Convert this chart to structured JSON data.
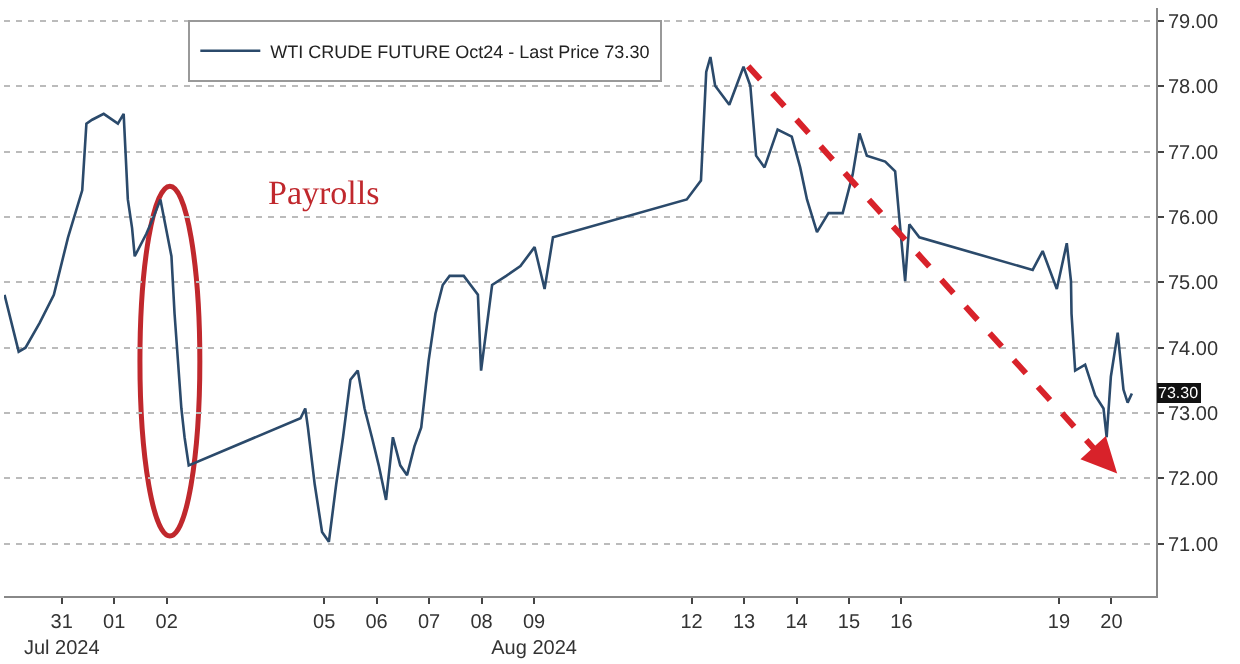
{
  "chart_data": {
    "type": "line",
    "legend": "top left",
    "grid": "y",
    "marker": "none",
    "line_style": "solid",
    "xlim": [
      "2024-07-30T09:36",
      "2024-08-21T08:24"
    ],
    "ylim": [
      70.2,
      79.2
    ],
    "yticks": [
      {
        "value": 71,
        "label": "71.00"
      },
      {
        "value": 72,
        "label": "72.00"
      },
      {
        "value": 73,
        "label": "73.00"
      },
      {
        "value": 74,
        "label": "74.00"
      },
      {
        "value": 75,
        "label": "75.00"
      },
      {
        "value": 76,
        "label": "76.00"
      },
      {
        "value": 77,
        "label": "77.00"
      },
      {
        "value": 78,
        "label": "78.00"
      },
      {
        "value": 79,
        "label": "79.00"
      }
    ],
    "xticks": [
      {
        "value": "2024-07-31T12:00",
        "label": "31\nJul 2024"
      },
      {
        "value": "2024-08-01T12:00",
        "label": "01"
      },
      {
        "value": "2024-08-02T12:00",
        "label": "02"
      },
      {
        "value": "2024-08-05T12:00",
        "label": "05"
      },
      {
        "value": "2024-08-06T12:00",
        "label": "06"
      },
      {
        "value": "2024-08-07T12:00",
        "label": "07"
      },
      {
        "value": "2024-08-08T12:00",
        "label": "08"
      },
      {
        "value": "2024-08-09T12:00",
        "label": "09\nAug 2024"
      },
      {
        "value": "2024-08-12T12:00",
        "label": "12"
      },
      {
        "value": "2024-08-13T12:00",
        "label": "13"
      },
      {
        "value": "2024-08-14T12:00",
        "label": "14"
      },
      {
        "value": "2024-08-15T12:00",
        "label": "15"
      },
      {
        "value": "2024-08-16T12:00",
        "label": "16"
      },
      {
        "value": "2024-08-19T12:00",
        "label": "19"
      },
      {
        "value": "2024-08-20T12:00",
        "label": "20"
      }
    ],
    "annotations": [
      "Payrolls",
      {
        "text": "73.30",
        "y": 73.3
      }
    ],
    "series": [
      {
        "name": "WTI CRUDE FUTURE Oct24 - Last Price 73.30",
        "color": "#2b4a6b",
        "x": [
          "2024-07-30T09:50",
          "2024-07-30T16:19",
          "2024-07-30T19:26",
          "2024-07-31T01:55",
          "2024-07-31T08:24",
          "2024-07-31T14:53",
          "2024-07-31T21:22",
          "2024-07-31T23:17",
          "2024-08-01T01:55",
          "2024-08-01T07:12",
          "2024-08-01T13:41",
          "2024-08-01T16:19",
          "2024-08-01T18:14",
          "2024-08-01T20:10",
          "2024-08-01T21:22",
          "2024-08-02T02:38",
          "2024-08-02T05:46",
          "2024-08-02T09:07",
          "2024-08-02T14:10",
          "2024-08-02T15:36",
          "2024-08-02T18:43",
          "2024-08-02T20:10",
          "2024-08-02T22:05",
          "2024-08-05T01:12",
          "2024-08-05T03:22",
          "2024-08-05T04:34",
          "2024-08-05T07:41",
          "2024-08-05T11:02",
          "2024-08-05T14:10",
          "2024-08-05T17:31",
          "2024-08-05T20:38",
          "2024-08-06T00:00",
          "2024-08-06T03:22",
          "2024-08-06T06:29",
          "2024-08-06T09:50",
          "2024-08-06T12:58",
          "2024-08-06T16:19",
          "2024-08-06T19:26",
          "2024-08-06T22:48",
          "2024-08-07T01:55",
          "2024-08-07T05:17",
          "2024-08-07T08:24",
          "2024-08-07T11:46",
          "2024-08-07T14:53",
          "2024-08-07T18:14",
          "2024-08-07T21:22",
          "2024-08-08T03:50",
          "2024-08-08T10:19",
          "2024-08-08T11:46",
          "2024-08-08T16:48",
          "2024-08-08T23:17",
          "2024-08-09T05:46",
          "2024-08-09T12:14",
          "2024-08-09T16:48",
          "2024-08-09T20:38",
          "2024-08-12T09:50",
          "2024-08-12T16:19",
          "2024-08-12T18:43",
          "2024-08-12T20:38",
          "2024-08-12T22:48",
          "2024-08-13T05:17",
          "2024-08-13T11:46",
          "2024-08-13T14:53",
          "2024-08-13T17:31",
          "2024-08-13T21:22",
          "2024-08-14T03:22",
          "2024-08-14T09:50",
          "2024-08-14T13:41",
          "2024-08-14T16:48",
          "2024-08-14T21:22",
          "2024-08-15T02:38",
          "2024-08-15T09:07",
          "2024-08-15T13:41",
          "2024-08-15T16:48",
          "2024-08-15T20:10",
          "2024-08-16T04:34",
          "2024-08-16T09:07",
          "2024-08-16T11:02",
          "2024-08-16T13:41",
          "2024-08-16T15:36",
          "2024-08-16T20:10",
          "2024-08-19T00:00",
          "2024-08-19T04:34",
          "2024-08-19T11:02",
          "2024-08-19T15:36",
          "2024-08-19T17:31",
          "2024-08-19T17:46",
          "2024-08-19T19:26",
          "2024-08-20T00:00",
          "2024-08-20T04:34",
          "2024-08-20T08:24",
          "2024-08-20T09:50",
          "2024-08-20T11:46",
          "2024-08-20T14:53",
          "2024-08-20T17:31",
          "2024-08-20T19:26",
          "2024-08-20T21:22"
        ],
        "values": [
          74.81,
          73.94,
          74.0,
          74.38,
          74.81,
          75.69,
          76.41,
          77.43,
          77.49,
          77.58,
          77.43,
          77.58,
          76.27,
          75.83,
          75.4,
          75.74,
          75.98,
          76.27,
          75.4,
          74.52,
          73.07,
          72.63,
          72.2,
          72.92,
          73.07,
          72.78,
          71.91,
          71.18,
          71.03,
          71.91,
          72.63,
          73.51,
          73.65,
          73.07,
          72.63,
          72.2,
          71.67,
          72.63,
          72.2,
          72.05,
          72.49,
          72.78,
          73.8,
          74.52,
          74.96,
          75.1,
          75.1,
          74.81,
          73.65,
          74.96,
          75.1,
          75.25,
          75.54,
          74.9,
          75.69,
          76.27,
          76.56,
          78.22,
          78.45,
          78.01,
          77.72,
          78.3,
          78.01,
          76.94,
          76.76,
          77.34,
          77.23,
          76.76,
          76.27,
          75.77,
          76.06,
          76.06,
          76.65,
          77.28,
          76.94,
          76.85,
          76.7,
          75.98,
          75.02,
          75.89,
          75.69,
          75.19,
          75.48,
          74.9,
          75.6,
          75.02,
          74.52,
          73.65,
          73.74,
          73.27,
          73.07,
          72.63,
          73.56,
          74.23,
          73.36,
          73.16,
          73.3
        ]
      }
    ]
  }
}
